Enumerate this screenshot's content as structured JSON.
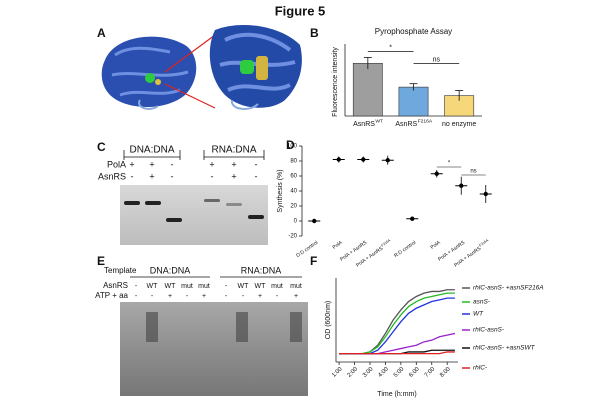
{
  "title": "Figure 5",
  "panel_labels": [
    "A",
    "B",
    "C",
    "D",
    "E",
    "F"
  ],
  "panel_c": {
    "groups": [
      "DNA:DNA",
      "RNA:DNA"
    ],
    "rows": [
      {
        "label": "PolA",
        "marks": [
          "+",
          "+",
          "-",
          "+",
          "+",
          "-"
        ]
      },
      {
        "label": "AsnRS",
        "marks": [
          "-",
          "+",
          "-",
          "-",
          "+",
          "-"
        ]
      }
    ]
  },
  "panel_e": {
    "template_label": "Template",
    "groups": [
      "DNA:DNA",
      "RNA:DNA"
    ],
    "rows": [
      {
        "label": "AsnRS",
        "marks": [
          "-",
          "WT",
          "WT",
          "mut",
          "mut",
          "-",
          "WT",
          "WT",
          "mut",
          "mut"
        ]
      },
      {
        "label": "ATP + aa",
        "marks": [
          "-",
          "-",
          "+",
          "-",
          "+",
          "-",
          "-",
          "+",
          "-",
          "+"
        ]
      }
    ]
  },
  "chart_data": [
    {
      "type": "bar",
      "title": "Pyrophosphate Assay",
      "ylabel": "Fluorescence intensity",
      "categories": [
        "AsnRS",
        "AsnRS",
        "no enzyme"
      ],
      "category_superscripts": [
        "WT",
        "F216A",
        null
      ],
      "values": [
        1.55,
        0.85,
        0.6
      ],
      "errors": [
        0.17,
        0.1,
        0.15
      ],
      "colors": [
        "#9e9e9e",
        "#6fa8dc",
        "#f6d77a"
      ],
      "ylim": [
        0,
        2
      ],
      "annotations": [
        "*",
        "ns"
      ]
    },
    {
      "type": "dot",
      "ylabel": "Synthesis (%)",
      "categories": [
        "D:D control",
        "PolA",
        "PolA + AsnRS",
        "PolA + AsnRS",
        "R:D control",
        "PolA",
        "PolA + AsnRS",
        "PolA + AsnRS"
      ],
      "category_superscripts": [
        null,
        null,
        null,
        "F216A",
        null,
        null,
        null,
        "F216A"
      ],
      "values": [
        0,
        82,
        82,
        81,
        3,
        63,
        47,
        36
      ],
      "errors": [
        0,
        4,
        4,
        6,
        1,
        5,
        12,
        12
      ],
      "color": "#000000",
      "ylim": [
        -20,
        100
      ],
      "yticks": [
        -20,
        0,
        20,
        40,
        60,
        80,
        100
      ],
      "annotations": [
        "*",
        "ns"
      ]
    },
    {
      "type": "line",
      "xlabel": "Time (h:mm)",
      "ylabel": "OD (600nm)",
      "x": [
        1,
        1.5,
        2,
        2.5,
        3,
        3.5,
        4,
        4.5,
        5,
        5.5,
        6,
        6.5,
        7,
        7.5,
        8,
        8.5
      ],
      "xlim": [
        0.8,
        8.7
      ],
      "ylim": [
        0.05,
        0.55
      ],
      "xticks": [
        {
          "value": 1,
          "label": "1:00"
        },
        {
          "value": 2,
          "label": "2:00"
        },
        {
          "value": 3,
          "label": "3:00"
        },
        {
          "value": 4,
          "label": "4:00"
        },
        {
          "value": 5,
          "label": "5:00"
        },
        {
          "value": 6,
          "label": "6:00"
        },
        {
          "value": 7,
          "label": "7:00"
        },
        {
          "value": 8,
          "label": "8:00"
        }
      ],
      "series": [
        {
          "name": "rhlC-asnS- +asnSF216A",
          "color": "#555555",
          "values": [
            0.1,
            0.1,
            0.1,
            0.1,
            0.11,
            0.15,
            0.22,
            0.3,
            0.36,
            0.41,
            0.44,
            0.46,
            0.47,
            0.47,
            0.48,
            0.48
          ]
        },
        {
          "name": "asnS-",
          "color": "#22bb22",
          "values": [
            0.1,
            0.1,
            0.1,
            0.1,
            0.11,
            0.14,
            0.2,
            0.27,
            0.33,
            0.38,
            0.41,
            0.43,
            0.44,
            0.45,
            0.46,
            0.46
          ]
        },
        {
          "name": "WT",
          "color": "#2233dd",
          "values": [
            0.1,
            0.1,
            0.1,
            0.1,
            0.1,
            0.12,
            0.17,
            0.23,
            0.29,
            0.34,
            0.37,
            0.39,
            0.41,
            0.42,
            0.43,
            0.43
          ]
        },
        {
          "name": "rhlC-asnS-",
          "color": "#9922cc",
          "values": [
            0.1,
            0.1,
            0.1,
            0.1,
            0.1,
            0.1,
            0.11,
            0.12,
            0.13,
            0.14,
            0.15,
            0.17,
            0.18,
            0.2,
            0.21,
            0.22
          ]
        },
        {
          "name": "rhlC-asnS- +asnSWT",
          "color": "#111111",
          "values": [
            0.1,
            0.1,
            0.1,
            0.1,
            0.1,
            0.1,
            0.1,
            0.1,
            0.1,
            0.11,
            0.11,
            0.11,
            0.12,
            0.12,
            0.12,
            0.12
          ]
        },
        {
          "name": "rhlC-",
          "color": "#dd2222",
          "values": [
            0.1,
            0.1,
            0.1,
            0.1,
            0.1,
            0.1,
            0.1,
            0.1,
            0.1,
            0.1,
            0.1,
            0.1,
            0.1,
            0.1,
            0.11,
            0.11
          ]
        }
      ]
    }
  ]
}
